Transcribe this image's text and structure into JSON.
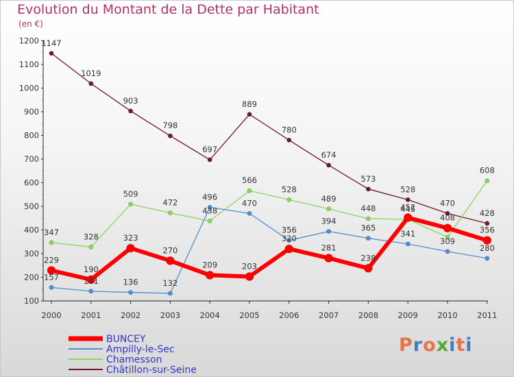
{
  "header": {
    "title": "Evolution du Montant de la Dette par Habitant",
    "subtitle": "(en €)"
  },
  "logo": {
    "text": "Proxiti",
    "colors": [
      "#e8734a",
      "#3f7fc1",
      "#e8734a",
      "#55aa33",
      "#3f7fc1",
      "#e8734a",
      "#3f7fc1"
    ]
  },
  "chart_data": {
    "type": "line",
    "x": [
      "2000",
      "2001",
      "2002",
      "2003",
      "2004",
      "2005",
      "2006",
      "2007",
      "2008",
      "2009",
      "2010",
      "2011"
    ],
    "ylim": [
      100,
      1200
    ],
    "yticks": [
      100,
      200,
      300,
      400,
      500,
      600,
      700,
      800,
      900,
      1000,
      1100,
      1200
    ],
    "grid": false,
    "legend_position": "bottom-left",
    "series": [
      {
        "name": "Châtillon-sur-Seine",
        "color": "#6e1a22",
        "width": 1.3,
        "radius": 3.2,
        "values": [
          1147,
          1019,
          903,
          798,
          697,
          889,
          780,
          674,
          573,
          528,
          470,
          428
        ],
        "labels": [
          "1147",
          "1019",
          "903",
          "798",
          "697",
          "889",
          "780",
          "674",
          "573",
          "528",
          "470",
          "428"
        ]
      },
      {
        "name": "Chamesson",
        "color": "#88d65a",
        "width": 1.3,
        "radius": 3.2,
        "values": [
          347,
          328,
          509,
          472,
          438,
          566,
          528,
          489,
          448,
          445,
          370,
          608
        ],
        "labels": [
          "347",
          "328",
          "509",
          "472",
          "438",
          "566",
          "528",
          "489",
          "448",
          "445",
          "",
          "608"
        ]
      },
      {
        "name": "Ampilly-le-Sec",
        "color": "#4f8fcf",
        "width": 1.3,
        "radius": 3.2,
        "values": [
          157,
          141,
          136,
          132,
          496,
          470,
          356,
          394,
          365,
          341,
          309,
          280
        ],
        "labels": [
          "157",
          "141",
          "136",
          "132",
          "496",
          "470",
          "356",
          "394",
          "365",
          "341",
          "309",
          "280"
        ]
      },
      {
        "name": "BUNCEY",
        "color": "#ff0000",
        "width": 6,
        "radius": 6,
        "values": [
          229,
          190,
          323,
          270,
          209,
          203,
          320,
          281,
          238,
          452,
          408,
          356
        ],
        "labels": [
          "229",
          "190",
          "323",
          "270",
          "209",
          "203",
          "320",
          "281",
          "238",
          "452",
          "408",
          "356"
        ]
      }
    ],
    "legend": [
      {
        "name": "BUNCEY",
        "color": "#ff0000",
        "text_color": "#3333cc",
        "width": 7
      },
      {
        "name": "Ampilly-le-Sec",
        "color": "#4f8fcf",
        "text_color": "#3333cc",
        "width": 2
      },
      {
        "name": "Chamesson",
        "color": "#88d65a",
        "text_color": "#3333cc",
        "width": 2
      },
      {
        "name": "Châtillon-sur-Seine",
        "color": "#6e1a22",
        "text_color": "#3333cc",
        "width": 2
      }
    ]
  }
}
